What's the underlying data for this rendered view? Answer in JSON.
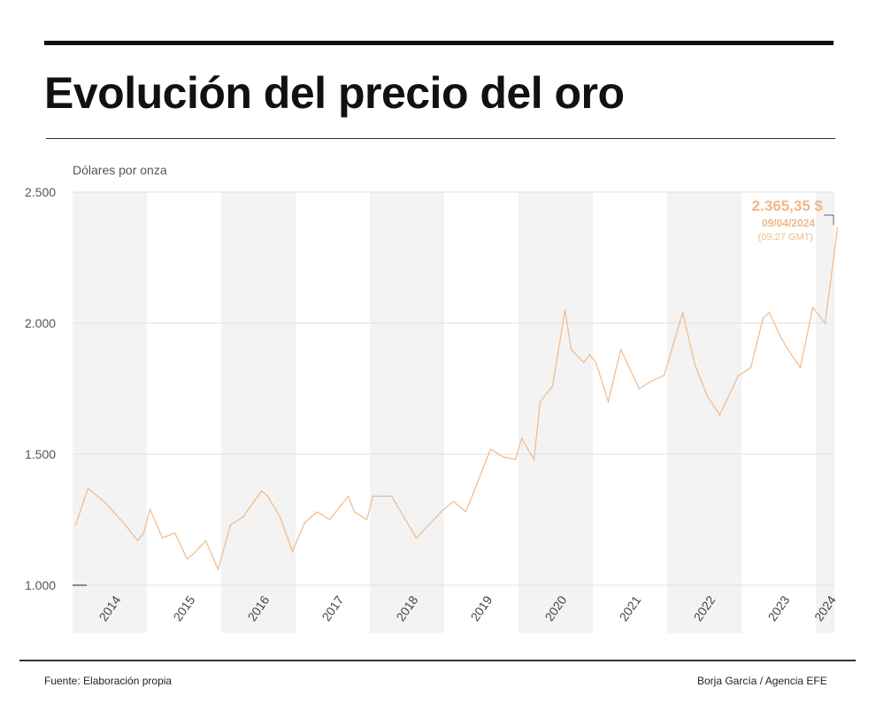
{
  "header": {
    "title": "Evolución del precio del oro"
  },
  "footer": {
    "source": "Fuente: Elaboración propia",
    "credit": "Borja García / Agencia EFE"
  },
  "chart_data": {
    "type": "line",
    "title": "Evolución del precio del oro",
    "ylabel": "Dólares por onza",
    "xlabel": "",
    "ylim": [
      1000,
      2500
    ],
    "yticks": [
      "1.000",
      "1.500",
      "2.000",
      "2.500"
    ],
    "ytick_values": [
      1000,
      1500,
      2000,
      2500
    ],
    "xticks": [
      "2014",
      "2015",
      "2016",
      "2017",
      "2018",
      "2019",
      "2020",
      "2021",
      "2022",
      "2023",
      "2024"
    ],
    "grid": true,
    "line_color": "#f0b98a",
    "annotation": {
      "value": "2.365,35 $",
      "date": "09/04/2024",
      "time": "(09:27 GMT)",
      "color": "#f0b98a"
    },
    "series": [
      {
        "x": [
          "2014-01",
          "2014-03",
          "2014-06",
          "2014-09",
          "2014-11",
          "2014-12",
          "2015-01",
          "2015-03",
          "2015-05",
          "2015-07",
          "2015-08",
          "2015-10",
          "2015-12",
          "2016-02",
          "2016-04",
          "2016-07",
          "2016-08",
          "2016-10",
          "2016-12",
          "2017-02",
          "2017-04",
          "2017-06",
          "2017-09",
          "2017-10",
          "2017-12",
          "2018-01",
          "2018-04",
          "2018-06",
          "2018-08",
          "2018-10",
          "2018-12",
          "2019-02",
          "2019-04",
          "2019-06",
          "2019-08",
          "2019-10",
          "2019-12",
          "2020-01",
          "2020-03",
          "2020-04",
          "2020-06",
          "2020-08",
          "2020-09",
          "2020-11",
          "2020-12",
          "2021-01",
          "2021-03",
          "2021-05",
          "2021-07",
          "2021-08",
          "2021-10",
          "2021-12",
          "2022-03",
          "2022-05",
          "2022-07",
          "2022-09",
          "2022-11",
          "2022-12",
          "2023-02",
          "2023-04",
          "2023-05",
          "2023-07",
          "2023-08",
          "2023-10",
          "2023-12",
          "2024-01",
          "2024-02",
          "2024-03",
          "2024-04"
        ],
        "values": [
          1230,
          1370,
          1310,
          1230,
          1170,
          1200,
          1290,
          1180,
          1200,
          1100,
          1120,
          1170,
          1060,
          1230,
          1260,
          1360,
          1340,
          1260,
          1130,
          1240,
          1280,
          1250,
          1340,
          1280,
          1250,
          1340,
          1340,
          1260,
          1180,
          1230,
          1280,
          1320,
          1280,
          1400,
          1520,
          1490,
          1480,
          1560,
          1480,
          1700,
          1760,
          2050,
          1900,
          1850,
          1880,
          1850,
          1700,
          1900,
          1800,
          1750,
          1780,
          1800,
          2040,
          1840,
          1720,
          1650,
          1750,
          1800,
          1830,
          2020,
          2040,
          1940,
          1900,
          1830,
          2060,
          2030,
          2000,
          2180,
          2365
        ]
      }
    ]
  }
}
